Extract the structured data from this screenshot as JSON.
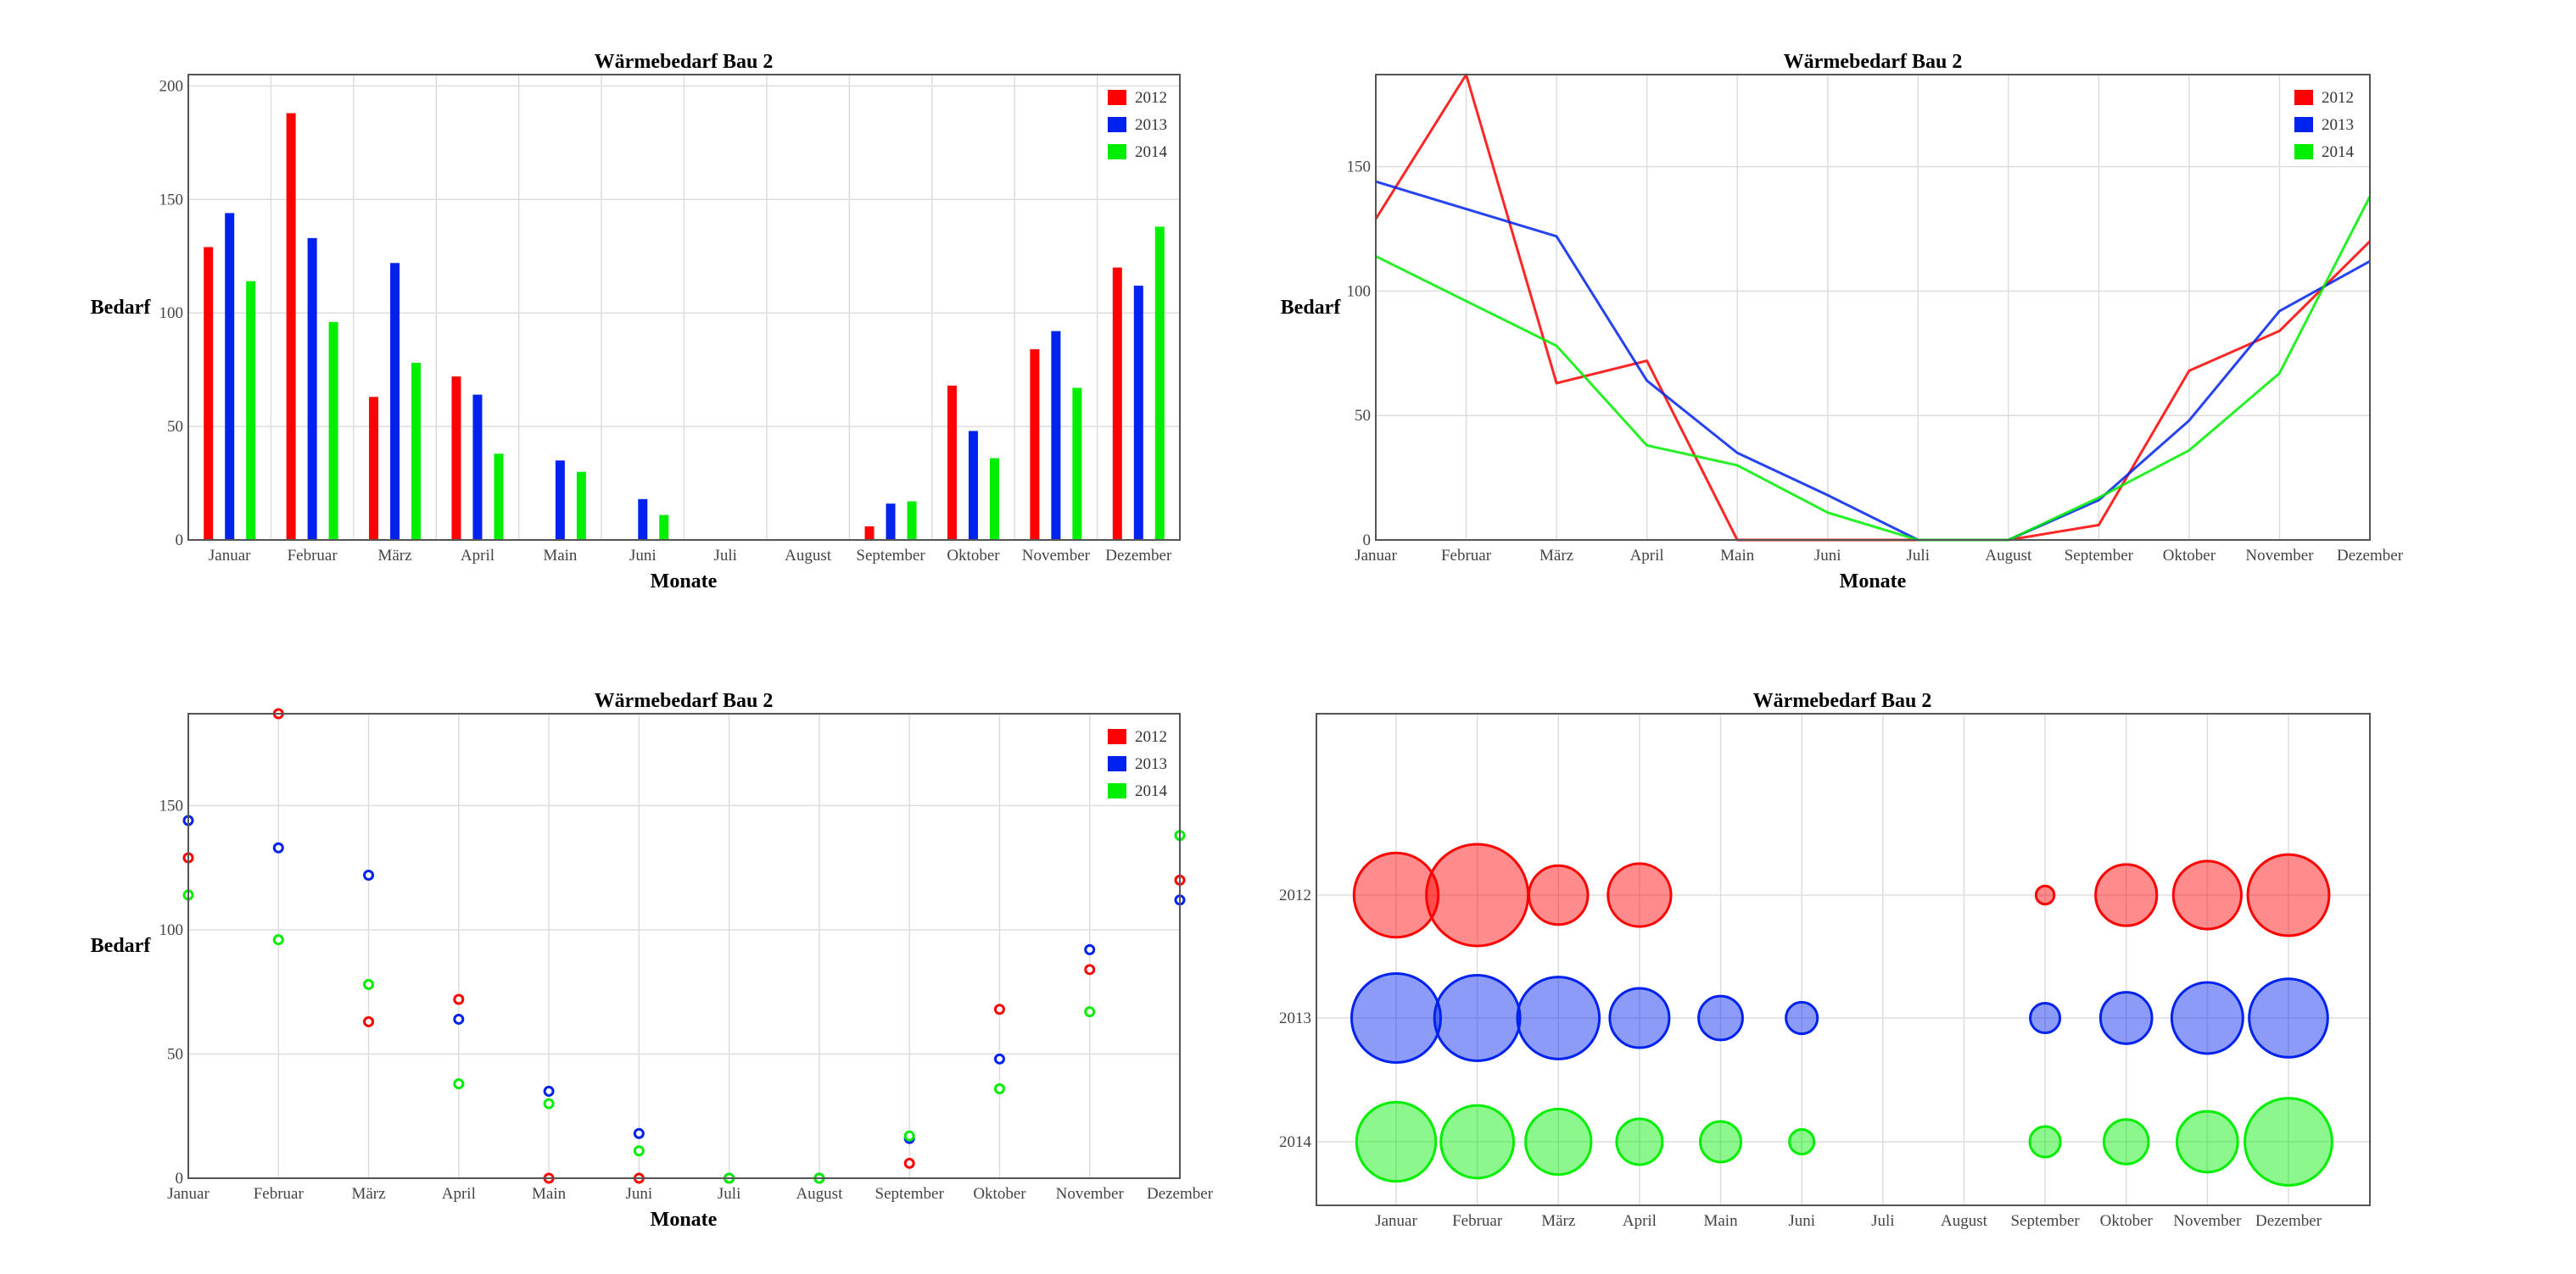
{
  "chart_data": [
    {
      "id": "bar",
      "type": "bar",
      "title": "Wärmebedarf Bau 2",
      "xlabel": "Monate",
      "ylabel": "Bedarf",
      "ylim": [
        0,
        205
      ],
      "yticks": [
        0,
        50,
        100,
        150,
        200
      ],
      "legend": "top-right",
      "grid": true,
      "categories": [
        "Januar",
        "Februar",
        "März",
        "April",
        "Main",
        "Juni",
        "Juli",
        "August",
        "September",
        "Oktober",
        "November",
        "Dezember"
      ],
      "series": [
        {
          "name": "2012",
          "color": "#ff0000",
          "values": [
            129,
            188,
            63,
            72,
            0,
            0,
            0,
            0,
            6,
            68,
            84,
            120
          ]
        },
        {
          "name": "2013",
          "color": "#0022ee",
          "values": [
            144,
            133,
            122,
            64,
            35,
            18,
            0,
            0,
            16,
            48,
            92,
            112
          ]
        },
        {
          "name": "2014",
          "color": "#00ee00",
          "values": [
            114,
            96,
            78,
            38,
            30,
            11,
            0,
            0,
            17,
            36,
            67,
            138
          ]
        }
      ]
    },
    {
      "id": "line",
      "type": "line",
      "title": "Wärmebedarf Bau 2",
      "xlabel": "Monate",
      "ylabel": "Bedarf",
      "ylim": [
        0,
        187
      ],
      "yticks": [
        0,
        50,
        100,
        150
      ],
      "legend": "top-right",
      "grid": true,
      "categories": [
        "Januar",
        "Februar",
        "März",
        "April",
        "Main",
        "Juni",
        "Juli",
        "August",
        "September",
        "Oktober",
        "November",
        "Dezember"
      ],
      "series": [
        {
          "name": "2012",
          "color": "#ff0000",
          "values": [
            129,
            188,
            63,
            72,
            0,
            0,
            0,
            0,
            6,
            68,
            84,
            120
          ]
        },
        {
          "name": "2013",
          "color": "#0022ee",
          "values": [
            144,
            133,
            122,
            64,
            35,
            18,
            0,
            0,
            16,
            48,
            92,
            112
          ]
        },
        {
          "name": "2014",
          "color": "#00ee00",
          "values": [
            114,
            96,
            78,
            38,
            30,
            11,
            0,
            0,
            17,
            36,
            67,
            138
          ]
        }
      ]
    },
    {
      "id": "scatter",
      "type": "scatter",
      "title": "Wärmebedarf Bau 2",
      "xlabel": "Monate",
      "ylabel": "Bedarf",
      "ylim": [
        0,
        187
      ],
      "yticks": [
        0,
        50,
        100,
        150
      ],
      "legend": "top-right",
      "grid": true,
      "categories": [
        "Januar",
        "Februar",
        "März",
        "April",
        "Main",
        "Juni",
        "Juli",
        "August",
        "September",
        "Oktober",
        "November",
        "Dezember"
      ],
      "series": [
        {
          "name": "2012",
          "color": "#ff0000",
          "values": [
            129,
            188,
            63,
            72,
            0,
            0,
            0,
            0,
            6,
            68,
            84,
            120
          ]
        },
        {
          "name": "2013",
          "color": "#0022ee",
          "values": [
            144,
            133,
            122,
            64,
            35,
            18,
            0,
            0,
            16,
            48,
            92,
            112
          ]
        },
        {
          "name": "2014",
          "color": "#00ee00",
          "values": [
            114,
            96,
            78,
            38,
            30,
            11,
            0,
            0,
            17,
            36,
            67,
            138
          ]
        }
      ]
    },
    {
      "id": "bubble",
      "type": "bubble",
      "title": "Wärmebedarf Bau 2",
      "xlabel": "",
      "ylabel": "",
      "grid": true,
      "categories": [
        "Januar",
        "Februar",
        "März",
        "April",
        "Main",
        "Juni",
        "Juli",
        "August",
        "September",
        "Oktober",
        "November",
        "Dezember"
      ],
      "rows": [
        "2012",
        "2013",
        "2014"
      ],
      "series": [
        {
          "name": "2012",
          "color": "#ff0000",
          "values": [
            129,
            188,
            63,
            72,
            0,
            0,
            0,
            0,
            6,
            68,
            84,
            120
          ]
        },
        {
          "name": "2013",
          "color": "#0022ee",
          "values": [
            144,
            133,
            122,
            64,
            35,
            18,
            0,
            0,
            16,
            48,
            92,
            112
          ]
        },
        {
          "name": "2014",
          "color": "#00ee00",
          "values": [
            114,
            96,
            78,
            38,
            30,
            11,
            0,
            0,
            17,
            36,
            67,
            138
          ]
        }
      ]
    }
  ]
}
